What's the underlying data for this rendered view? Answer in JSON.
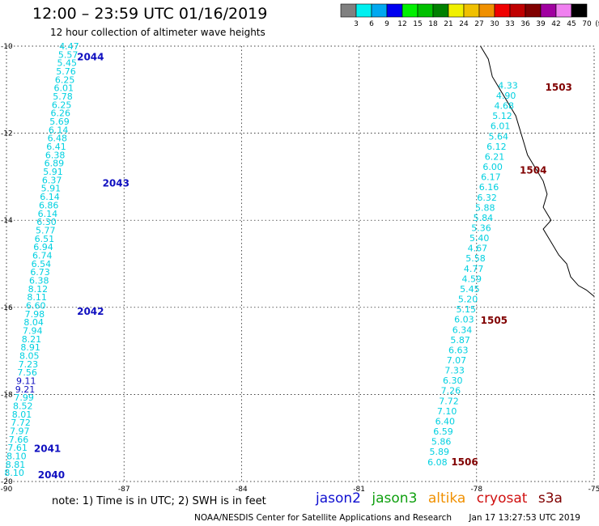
{
  "title": "12:00 – 23:59 UTC 01/16/2019",
  "subtitle": "12 hour collection of altimeter wave heights",
  "note": "note: 1) Time is in UTC; 2) SWH is in feet",
  "credit": "NOAA/NESDIS Center for Satellite Applications and Research",
  "timestamp": "Jan 17 13:27:53 UTC 2019",
  "satellites": [
    {
      "name": "jason2",
      "color": "#1010d0"
    },
    {
      "name": "jason3",
      "color": "#10a010"
    },
    {
      "name": "altika",
      "color": "#f09000"
    },
    {
      "name": "cryosat",
      "color": "#d01010"
    },
    {
      "name": "s3a",
      "color": "#800000"
    }
  ],
  "colorbar": {
    "labels": [
      "3",
      "6",
      "9",
      "12",
      "15",
      "18",
      "21",
      "24",
      "27",
      "30",
      "33",
      "36",
      "39",
      "42",
      "45",
      "70",
      "(ft)"
    ],
    "colors": [
      "#808080",
      "#00f0f0",
      "#00a8f0",
      "#0000f0",
      "#00f000",
      "#00c000",
      "#008000",
      "#f0f000",
      "#f0c000",
      "#f09000",
      "#f00000",
      "#c00000",
      "#800000",
      "#a000a0",
      "#f080f0",
      "#000000"
    ]
  },
  "chart_data": {
    "type": "scatter",
    "xlim": [
      -90,
      -75
    ],
    "ylim": [
      -20,
      -10
    ],
    "xticks": [
      "-90",
      "-87",
      "-84",
      "-81",
      "-78",
      "-75"
    ],
    "yticks": [
      "-10",
      "-12",
      "-14",
      "-16",
      "-18",
      "-20"
    ],
    "grid": true,
    "value_color": "#00d0e0",
    "high_value_color": "#1010c0",
    "tracks": [
      {
        "values": [
          "4.47",
          "5.57",
          "5.45",
          "5.76",
          "6.25",
          "6.01",
          "5.78",
          "6.25",
          "6.26",
          "5.69",
          "6.14",
          "6.48",
          "6.41",
          "6.38",
          "6.89",
          "5.91",
          "6.37",
          "5.91",
          "6.14",
          "6.86",
          "6.14",
          "6.30",
          "5.77",
          "6.51",
          "6.94",
          "6.74",
          "6.54",
          "6.73",
          "6.38",
          "8.12",
          "8.11",
          "6.60",
          "7.98",
          "8.04",
          "7.94",
          "8.21",
          "8.91",
          "8.05",
          "7.23",
          "7.56",
          "9.11",
          "9.21",
          "7.99",
          "8.52",
          "8.01",
          "7.72",
          "7.97",
          "7.66",
          "7.61",
          "8.10",
          "8.81",
          "8.10"
        ],
        "start": [
          -88.4,
          -10.0
        ],
        "end": [
          -89.8,
          -19.8
        ],
        "labels": [
          {
            "text": "2044",
            "x": -88.2,
            "y": -10.25,
            "color": "#1010c0"
          },
          {
            "text": "2043",
            "x": -87.55,
            "y": -13.15,
            "color": "#1010c0"
          },
          {
            "text": "2042",
            "x": -88.2,
            "y": -16.1,
            "color": "#1010c0"
          },
          {
            "text": "2041",
            "x": -89.3,
            "y": -19.25,
            "color": "#1010c0"
          },
          {
            "text": "2040",
            "x": -89.2,
            "y": -19.85,
            "color": "#1010c0"
          }
        ]
      },
      {
        "values": [
          "4.33",
          "4.90",
          "4.68",
          "5.12",
          "6.01",
          "5.64",
          "6.12",
          "6.21",
          "6.00",
          "6.17",
          "6.16",
          "6.32",
          "5.88",
          "5.84",
          "5.36",
          "5.40",
          "4.67",
          "5.58",
          "4.77",
          "4.59",
          "5.45",
          "5.20",
          "5.15",
          "6.03",
          "6.34",
          "5.87",
          "6.63",
          "7.07",
          "7.33",
          "6.30",
          "7.26",
          "7.72",
          "7.10",
          "6.40",
          "6.59",
          "5.86",
          "5.89",
          "6.08"
        ],
        "start": [
          -77.2,
          -10.9
        ],
        "end": [
          -79.0,
          -19.55
        ],
        "labels": [
          {
            "text": "1503",
            "x": -76.25,
            "y": -10.95,
            "color": "#800000"
          },
          {
            "text": "1504",
            "x": -76.9,
            "y": -12.85,
            "color": "#800000"
          },
          {
            "text": "1505",
            "x": -77.9,
            "y": -16.3,
            "color": "#800000"
          },
          {
            "text": "1506",
            "x": -78.65,
            "y": -19.55,
            "color": "#800000"
          }
        ]
      }
    ],
    "coastline": [
      [
        -77.9,
        -10.0
      ],
      [
        -77.7,
        -10.3
      ],
      [
        -77.6,
        -10.7
      ],
      [
        -77.4,
        -11.0
      ],
      [
        -77.2,
        -11.3
      ],
      [
        -77.0,
        -11.6
      ],
      [
        -76.9,
        -11.9
      ],
      [
        -76.8,
        -12.2
      ],
      [
        -76.7,
        -12.5
      ],
      [
        -76.5,
        -12.8
      ],
      [
        -76.3,
        -13.1
      ],
      [
        -76.2,
        -13.4
      ],
      [
        -76.3,
        -13.7
      ],
      [
        -76.1,
        -14.0
      ],
      [
        -76.3,
        -14.2
      ],
      [
        -76.1,
        -14.5
      ],
      [
        -75.9,
        -14.8
      ],
      [
        -75.7,
        -15.0
      ],
      [
        -75.6,
        -15.3
      ],
      [
        -75.4,
        -15.5
      ],
      [
        -75.2,
        -15.6
      ],
      [
        -75.0,
        -15.75
      ]
    ]
  }
}
